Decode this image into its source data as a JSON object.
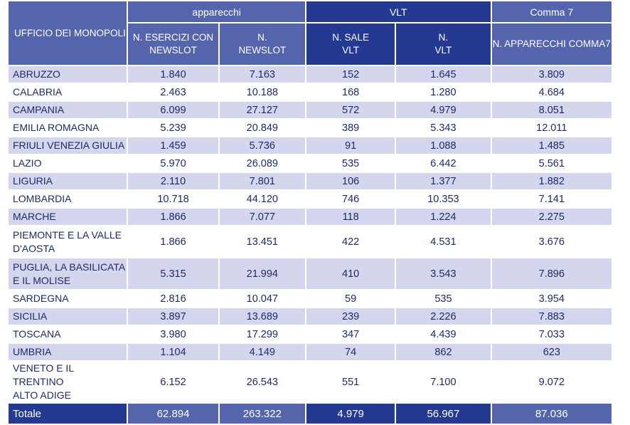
{
  "header": {
    "group_apparecchi": "apparecchi",
    "group_vlt": "VLT",
    "group_comma7": "Comma 7",
    "col_ufficio": "UFFICIO DEI MONOPOLI",
    "col_esercizi_l1": "N. ESERCIZI CON",
    "col_esercizi_l2": "NEWSLOT",
    "col_newslot_l1": "N.",
    "col_newslot_l2": "NEWSLOT",
    "col_sale_l1": "N. SALE",
    "col_sale_l2": "VLT",
    "col_vlt_l1": "N.",
    "col_vlt_l2": "VLT",
    "col_comma7": "N. APPARECCHI COMMA7"
  },
  "rows": [
    {
      "region_l1": "ABRUZZO",
      "region_l2": "",
      "esercizi": "1.840",
      "newslot": "7.163",
      "sale": "152",
      "vlt": "1.645",
      "comma7": "3.809"
    },
    {
      "region_l1": "CALABRIA",
      "region_l2": "",
      "esercizi": "2.463",
      "newslot": "10.188",
      "sale": "168",
      "vlt": "1.280",
      "comma7": "4.684"
    },
    {
      "region_l1": "CAMPANIA",
      "region_l2": "",
      "esercizi": "6.099",
      "newslot": "27.127",
      "sale": "572",
      "vlt": "4.979",
      "comma7": "8.051"
    },
    {
      "region_l1": "EMILIA ROMAGNA",
      "region_l2": "",
      "esercizi": "5.239",
      "newslot": "20.849",
      "sale": "389",
      "vlt": "5.343",
      "comma7": "12.011"
    },
    {
      "region_l1": "FRIULI VENEZIA GIULIA",
      "region_l2": "",
      "esercizi": "1.459",
      "newslot": "5.736",
      "sale": "91",
      "vlt": "1.088",
      "comma7": "1.485"
    },
    {
      "region_l1": "LAZIO",
      "region_l2": "",
      "esercizi": "5.970",
      "newslot": "26.089",
      "sale": "535",
      "vlt": "6.442",
      "comma7": "5.561"
    },
    {
      "region_l1": "LIGURIA",
      "region_l2": "",
      "esercizi": "2.110",
      "newslot": "7.801",
      "sale": "106",
      "vlt": "1.377",
      "comma7": "1.882"
    },
    {
      "region_l1": "LOMBARDIA",
      "region_l2": "",
      "esercizi": "10.718",
      "newslot": "44.120",
      "sale": "746",
      "vlt": "10.353",
      "comma7": "7.141"
    },
    {
      "region_l1": "MARCHE",
      "region_l2": "",
      "esercizi": "1.866",
      "newslot": "7.077",
      "sale": "118",
      "vlt": "1.224",
      "comma7": "2.275"
    },
    {
      "region_l1": "PIEMONTE E LA VALLE",
      "region_l2": "D'AOSTA",
      "esercizi": "1.866",
      "newslot": "13.451",
      "sale": "422",
      "vlt": "4.531",
      "comma7": "3.676"
    },
    {
      "region_l1": "PUGLIA, LA BASILICATA",
      "region_l2": "E IL MOLISE",
      "esercizi": "5.315",
      "newslot": "21.994",
      "sale": "410",
      "vlt": "3.543",
      "comma7": "7.896"
    },
    {
      "region_l1": "SARDEGNA",
      "region_l2": "",
      "esercizi": "2.816",
      "newslot": "10.047",
      "sale": "59",
      "vlt": "535",
      "comma7": "3.954"
    },
    {
      "region_l1": "SICILIA",
      "region_l2": "",
      "esercizi": "3.897",
      "newslot": "13.689",
      "sale": "239",
      "vlt": "2.226",
      "comma7": "7.883"
    },
    {
      "region_l1": "TOSCANA",
      "region_l2": "",
      "esercizi": "3.980",
      "newslot": "17.299",
      "sale": "347",
      "vlt": "4.439",
      "comma7": "7.033"
    },
    {
      "region_l1": "UMBRIA",
      "region_l2": "",
      "esercizi": "1.104",
      "newslot": "4.149",
      "sale": "74",
      "vlt": "862",
      "comma7": "623"
    },
    {
      "region_l1": "VENETO E IL TRENTINO",
      "region_l2": "ALTO ADIGE",
      "esercizi": "6.152",
      "newslot": "26.543",
      "sale": "551",
      "vlt": "7.100",
      "comma7": "9.072"
    }
  ],
  "totals": {
    "label": "Totale",
    "esercizi": "62.894",
    "newslot": "263.322",
    "sale": "4.979",
    "vlt": "56.967",
    "comma7": "87.036"
  },
  "colors": {
    "header_mid": "#5565ad",
    "header_dark": "#243991",
    "row_stripe": "#d3d6ec",
    "text": "#1f2a66"
  }
}
